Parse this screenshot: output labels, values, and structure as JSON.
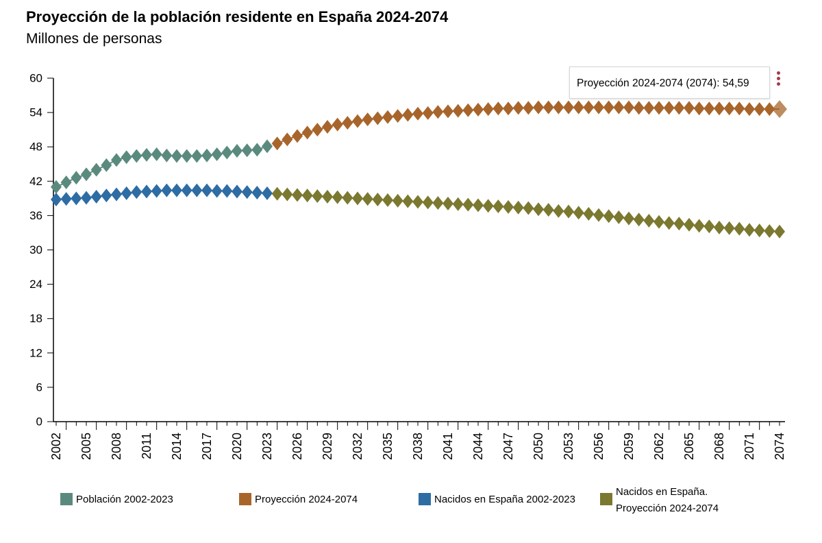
{
  "header": {
    "title": "Proyección de la población residente en España 2024-2074",
    "subtitle": "Millones de personas"
  },
  "tooltip": {
    "text": "Proyección 2024-2074 (2074): 54,59"
  },
  "menu": {
    "icon": "menu-dots-icon",
    "color": "#a33a4a"
  },
  "chart_data": {
    "type": "line",
    "title": "Proyección de la población residente en España 2024-2074",
    "subtitle": "Millones de personas",
    "ylim": [
      0,
      60
    ],
    "xlim": [
      2002,
      2074
    ],
    "yticks": [
      0,
      6,
      12,
      18,
      24,
      30,
      36,
      42,
      48,
      54,
      60
    ],
    "ytick_labels": [
      "0",
      "6",
      "12",
      "18",
      "24",
      "30",
      "36",
      "42",
      "48",
      "54",
      "60"
    ],
    "xticks": [
      2002,
      2005,
      2008,
      2011,
      2014,
      2017,
      2020,
      2023,
      2026,
      2029,
      2032,
      2035,
      2038,
      2041,
      2044,
      2047,
      2050,
      2053,
      2056,
      2059,
      2062,
      2065,
      2068,
      2071,
      2074
    ],
    "xtick_labels": [
      "2002",
      "2005",
      "2008",
      "2011",
      "2014",
      "2017",
      "2020",
      "2023",
      "2026",
      "2029",
      "2032",
      "2035",
      "2038",
      "2041",
      "2044",
      "2047",
      "2050",
      "2053",
      "2056",
      "2059",
      "2062",
      "2065",
      "2068",
      "2071",
      "2074"
    ],
    "marker": "diamond",
    "grid": false,
    "legend_position": "bottom",
    "highlight": {
      "series": 1,
      "year": 2074
    },
    "series": [
      {
        "name": "Población 2002-2023",
        "color": "#5a8a7e",
        "x_start": 2002,
        "values": [
          41.0,
          41.8,
          42.6,
          43.2,
          44.0,
          44.8,
          45.7,
          46.2,
          46.4,
          46.6,
          46.7,
          46.5,
          46.4,
          46.4,
          46.4,
          46.5,
          46.7,
          47.0,
          47.3,
          47.4,
          47.5,
          48.1
        ]
      },
      {
        "name": "Proyección 2024-2074",
        "color": "#a8652b",
        "x_start": 2024,
        "values": [
          48.6,
          49.3,
          49.9,
          50.5,
          51.0,
          51.5,
          51.9,
          52.2,
          52.5,
          52.8,
          53.0,
          53.2,
          53.4,
          53.6,
          53.8,
          53.9,
          54.1,
          54.2,
          54.3,
          54.4,
          54.5,
          54.6,
          54.7,
          54.7,
          54.8,
          54.8,
          54.9,
          54.9,
          54.9,
          54.9,
          54.9,
          54.9,
          54.9,
          54.9,
          54.9,
          54.9,
          54.8,
          54.8,
          54.8,
          54.8,
          54.8,
          54.8,
          54.7,
          54.7,
          54.7,
          54.7,
          54.7,
          54.6,
          54.6,
          54.6,
          54.59
        ]
      },
      {
        "name": "Nacidos en España 2002-2023",
        "color": "#2e6ca4",
        "x_start": 2002,
        "values": [
          38.8,
          38.9,
          39.0,
          39.1,
          39.3,
          39.5,
          39.7,
          39.9,
          40.1,
          40.2,
          40.3,
          40.4,
          40.4,
          40.4,
          40.4,
          40.4,
          40.3,
          40.3,
          40.2,
          40.1,
          40.0,
          39.9
        ]
      },
      {
        "name": "Nacidos en España. Proyección 2024-2074",
        "label_lines": [
          "Nacidos en España.",
          "Proyección 2024-2074"
        ],
        "color": "#7b7930",
        "x_start": 2024,
        "values": [
          39.8,
          39.7,
          39.6,
          39.5,
          39.4,
          39.3,
          39.2,
          39.1,
          39.0,
          38.9,
          38.8,
          38.7,
          38.6,
          38.5,
          38.4,
          38.3,
          38.2,
          38.1,
          38.0,
          37.9,
          37.8,
          37.7,
          37.6,
          37.5,
          37.4,
          37.3,
          37.1,
          37.0,
          36.8,
          36.7,
          36.5,
          36.3,
          36.1,
          35.9,
          35.7,
          35.5,
          35.3,
          35.1,
          34.9,
          34.7,
          34.6,
          34.4,
          34.2,
          34.1,
          33.9,
          33.8,
          33.7,
          33.5,
          33.4,
          33.3,
          33.2
        ]
      }
    ]
  }
}
